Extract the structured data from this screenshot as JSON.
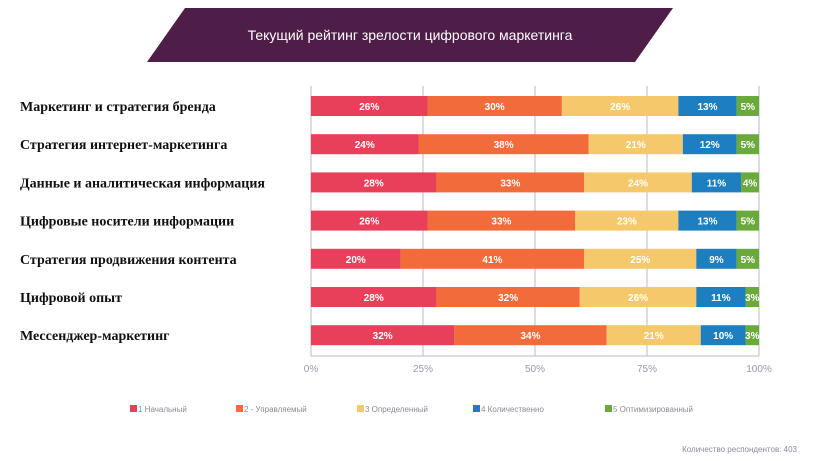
{
  "chart_data": {
    "type": "bar",
    "orientation": "horizontal",
    "stacked": true,
    "title": "Текущий рейтинг зрелости цифрового маркетинга",
    "categories": [
      "Маркетинг и стратегия бренда",
      "Стратегия интернет-маркетинга",
      "Данные и аналитическая информация",
      "Цифровые носители информации",
      "Стратегия продвижения контента",
      "Цифровой опыт",
      "Мессенджер-маркетинг"
    ],
    "series": [
      {
        "name": "1 Начальный",
        "color": "#e8405a",
        "values": [
          26,
          24,
          28,
          26,
          20,
          28,
          32
        ]
      },
      {
        "name": "2 - Управляемый",
        "color": "#f26b3a",
        "values": [
          30,
          38,
          33,
          33,
          41,
          32,
          34
        ]
      },
      {
        "name": "3 Определенный",
        "color": "#f5c96b",
        "values": [
          26,
          21,
          24,
          23,
          25,
          26,
          21
        ]
      },
      {
        "name": "4 Количественно",
        "color": "#1e7fc0",
        "values": [
          13,
          12,
          11,
          13,
          9,
          11,
          10
        ]
      },
      {
        "name": "5 Оптимизированный",
        "color": "#6aaa3a",
        "values": [
          5,
          5,
          4,
          5,
          5,
          3,
          3
        ]
      }
    ],
    "xticks": [
      "0%",
      "25%",
      "50%",
      "75%",
      "100%"
    ],
    "xlim": [
      0,
      100
    ],
    "grid": true,
    "legend_position": "bottom"
  },
  "colors": {
    "banner": "#4e1e48",
    "grid": "#b8b8c4",
    "axis": "#9a9aa8"
  },
  "footnote": "Количество респондентов: 403"
}
